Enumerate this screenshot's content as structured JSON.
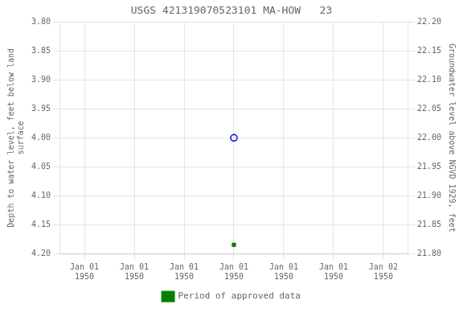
{
  "chart_data": {
    "type": "scatter",
    "title": "USGS 421319070523101 MA-HOW   23",
    "y_label": "Depth to water level, feet below land\nsurface",
    "y2_label": "Groundwater level above NGVD 1929, feet",
    "categories": [
      "Jan 01\n1950",
      "Jan 01\n1950",
      "Jan 01\n1950",
      "Jan 01\n1950",
      "Jan 01\n1950",
      "Jan 01\n1950",
      "Jan 02\n1950"
    ],
    "ylim": [
      4.2,
      3.8
    ],
    "yticks": [
      {
        "value": 3.8,
        "label": "3.80"
      },
      3.85,
      {
        "value": 3.9,
        "label": "3.90"
      },
      3.95,
      {
        "value": 4.0,
        "label": "4.00"
      },
      4.05,
      {
        "value": 4.1,
        "label": "4.10"
      },
      4.15,
      {
        "value": 4.2,
        "label": "4.20"
      }
    ],
    "y2lim": [
      21.8,
      22.2
    ],
    "y2ticks": [
      {
        "value": 21.8,
        "label": "21.80"
      },
      21.85,
      {
        "value": 21.9,
        "label": "21.90"
      },
      21.95,
      {
        "value": 22.0,
        "label": "22.00"
      },
      22.05,
      {
        "value": 22.1,
        "label": "22.10"
      },
      22.15,
      {
        "value": 22.2,
        "label": "22.20"
      }
    ],
    "series": [
      {
        "values": [
          null,
          null,
          null,
          4.0,
          null,
          null,
          null
        ],
        "color": "#0000cc",
        "marker": "open_circle"
      },
      {
        "name": "Period of approved data",
        "values": [
          null,
          null,
          null,
          4.185,
          null,
          null,
          null
        ],
        "color": "#008000",
        "marker": "square"
      }
    ],
    "grid": true,
    "legend": "bottom"
  }
}
